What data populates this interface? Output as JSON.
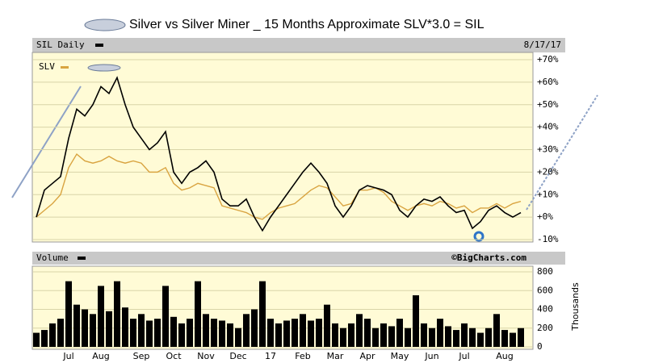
{
  "title": "Silver vs Silver Miner _ 15 Months Approximate SLV*3.0 = SIL",
  "chart_data": [
    {
      "type": "line",
      "title": "SIL Daily",
      "subtitle": "8/17/17",
      "source": "©BigCharts.com",
      "ylim": [
        -10,
        70
      ],
      "yticks": [
        {
          "value": 70,
          "label": "+70%"
        },
        {
          "value": 60,
          "label": "+60%"
        },
        {
          "value": 50,
          "label": "+50%"
        },
        {
          "value": 40,
          "label": "+40%"
        },
        {
          "value": 30,
          "label": "+30%"
        },
        {
          "value": 20,
          "label": "+20%"
        },
        {
          "value": 10,
          "label": "+10%"
        },
        {
          "value": 0,
          "label": "+0%"
        },
        {
          "value": -10,
          "label": "-10%"
        }
      ],
      "grid": true,
      "series": [
        {
          "color": "#000000",
          "values": [
            0,
            12,
            15,
            18,
            35,
            48,
            45,
            50,
            58,
            55,
            62,
            50,
            40,
            35,
            30,
            33,
            38,
            20,
            15,
            20,
            22,
            25,
            20,
            8,
            5,
            5,
            8,
            0,
            -6,
            0,
            5,
            10,
            15,
            20,
            24,
            20,
            15,
            5,
            0,
            5,
            12,
            14,
            13,
            12,
            10,
            3,
            0,
            5,
            8,
            7,
            9,
            5,
            2,
            3,
            -5,
            -2,
            3,
            5,
            2,
            0,
            2
          ]
        },
        {
          "name": "SLV",
          "color": "#d9a441",
          "values": [
            0,
            3,
            6,
            10,
            22,
            28,
            25,
            24,
            25,
            27,
            25,
            24,
            25,
            24,
            20,
            20,
            22,
            15,
            12,
            13,
            15,
            14,
            13,
            5,
            4,
            3,
            2,
            0,
            -1,
            2,
            4,
            5,
            6,
            9,
            12,
            14,
            13,
            9,
            5,
            6,
            12,
            12,
            13,
            11,
            7,
            5,
            3,
            5,
            6,
            5,
            7,
            6,
            4,
            5,
            2,
            4,
            4,
            6,
            4,
            6,
            7
          ]
        }
      ]
    },
    {
      "type": "bar",
      "title": "Volume",
      "ylabel": "Thousands",
      "color": "#000000",
      "ylim": [
        0,
        800
      ],
      "yticks": [
        0,
        200,
        400,
        600,
        800
      ],
      "categories": [
        null,
        null,
        null,
        null,
        "Jul",
        null,
        null,
        null,
        "Aug",
        null,
        null,
        null,
        null,
        "Sep",
        null,
        null,
        null,
        "Oct",
        null,
        null,
        null,
        "Nov",
        null,
        null,
        null,
        "Dec",
        null,
        null,
        null,
        "17",
        null,
        null,
        null,
        "Feb",
        null,
        null,
        null,
        "Mar",
        null,
        null,
        null,
        "Apr",
        null,
        null,
        null,
        "May",
        null,
        null,
        null,
        "Jun",
        null,
        null,
        null,
        "Jul",
        null,
        null,
        null,
        null,
        "Aug",
        null,
        null
      ],
      "values": [
        150,
        180,
        250,
        300,
        700,
        450,
        400,
        350,
        650,
        380,
        700,
        420,
        300,
        350,
        280,
        300,
        650,
        320,
        250,
        300,
        700,
        350,
        300,
        280,
        250,
        200,
        350,
        400,
        700,
        300,
        250,
        280,
        300,
        350,
        280,
        300,
        450,
        250,
        200,
        250,
        350,
        300,
        200,
        250,
        220,
        300,
        200,
        550,
        250,
        200,
        300,
        220,
        180,
        250,
        200,
        150,
        200,
        350,
        180,
        150,
        200
      ]
    }
  ]
}
